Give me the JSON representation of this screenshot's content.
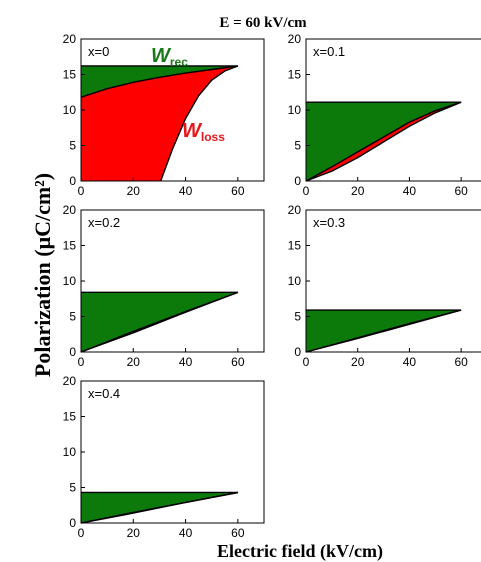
{
  "figure": {
    "title": "E = 60 kV/cm",
    "ylabel": "Polarization (μC/cm²)",
    "xlabel": "Electric field (kV/cm)",
    "annotations": {
      "w_rec_main": "W",
      "w_rec_sub": "rec",
      "w_loss_main": "W",
      "w_loss_sub": "loss"
    }
  },
  "colors": {
    "recoverable": "#0b7a0b",
    "loss": "#ff0000",
    "wrec_text": "#1a7a1a",
    "wloss_text": "#e8141a",
    "axis": "#000000"
  },
  "chart_data": [
    {
      "type": "area",
      "label": "x=0",
      "xlim": [
        0,
        70
      ],
      "ylim": [
        0,
        20
      ],
      "xticks": [
        "0",
        "20",
        "40",
        "60"
      ],
      "yticks": [
        "0",
        "5",
        "10",
        "15",
        "20"
      ],
      "Emax": 60,
      "Pmax": 16.2,
      "charge": [
        [
          0,
          11.8
        ],
        [
          10,
          13.0
        ],
        [
          20,
          13.9
        ],
        [
          30,
          14.6
        ],
        [
          40,
          15.2
        ],
        [
          50,
          15.7
        ],
        [
          60,
          16.2
        ]
      ],
      "discharge": [
        [
          30.5,
          0
        ],
        [
          35,
          4.5
        ],
        [
          40,
          8.8
        ],
        [
          45,
          12.0
        ],
        [
          50,
          14.2
        ],
        [
          55,
          15.5
        ],
        [
          60,
          16.2
        ]
      ]
    },
    {
      "type": "area",
      "label": "x=0.1",
      "xlim": [
        0,
        70
      ],
      "ylim": [
        0,
        20
      ],
      "xticks": [
        "0",
        "20",
        "40",
        "60"
      ],
      "yticks": [
        "0",
        "5",
        "10",
        "15",
        "20"
      ],
      "Emax": 60,
      "Pmax": 11.1,
      "charge": [
        [
          0,
          0
        ],
        [
          10,
          1.4
        ],
        [
          20,
          3.3
        ],
        [
          30,
          5.5
        ],
        [
          40,
          7.7
        ],
        [
          50,
          9.6
        ],
        [
          60,
          11.1
        ]
      ],
      "discharge": [
        [
          0,
          0
        ],
        [
          10,
          2.0
        ],
        [
          20,
          4.1
        ],
        [
          30,
          6.2
        ],
        [
          40,
          8.3
        ],
        [
          50,
          9.9
        ],
        [
          60,
          11.1
        ]
      ]
    },
    {
      "type": "area",
      "label": "x=0.2",
      "xlim": [
        0,
        70
      ],
      "ylim": [
        0,
        20
      ],
      "xticks": [
        "0",
        "20",
        "40",
        "60"
      ],
      "yticks": [
        "0",
        "5",
        "10",
        "15",
        "20"
      ],
      "Emax": 60,
      "Pmax": 8.4,
      "charge": [
        [
          0,
          0
        ],
        [
          20,
          2.7
        ],
        [
          40,
          5.6
        ],
        [
          60,
          8.4
        ]
      ],
      "discharge": [
        [
          0,
          0
        ],
        [
          20,
          2.9
        ],
        [
          40,
          5.7
        ],
        [
          60,
          8.4
        ]
      ]
    },
    {
      "type": "area",
      "label": "x=0.3",
      "xlim": [
        0,
        70
      ],
      "ylim": [
        0,
        20
      ],
      "xticks": [
        "0",
        "20",
        "40",
        "60"
      ],
      "yticks": [
        "0",
        "5",
        "10",
        "15",
        "20"
      ],
      "Emax": 60,
      "Pmax": 5.9,
      "charge": [
        [
          0,
          0
        ],
        [
          20,
          1.9
        ],
        [
          40,
          3.9
        ],
        [
          60,
          5.9
        ]
      ],
      "discharge": [
        [
          0,
          0
        ],
        [
          20,
          2.0
        ],
        [
          40,
          4.0
        ],
        [
          60,
          5.9
        ]
      ]
    },
    {
      "type": "area",
      "label": "x=0.4",
      "xlim": [
        0,
        70
      ],
      "ylim": [
        0,
        20
      ],
      "xticks": [
        "0",
        "20",
        "40",
        "60"
      ],
      "yticks": [
        "0",
        "5",
        "10",
        "15",
        "20"
      ],
      "Emax": 60,
      "Pmax": 4.3,
      "charge": [
        [
          0,
          0
        ],
        [
          20,
          1.4
        ],
        [
          40,
          2.9
        ],
        [
          60,
          4.3
        ]
      ],
      "discharge": [
        [
          0,
          0
        ],
        [
          20,
          1.5
        ],
        [
          40,
          2.9
        ],
        [
          60,
          4.3
        ]
      ]
    }
  ]
}
